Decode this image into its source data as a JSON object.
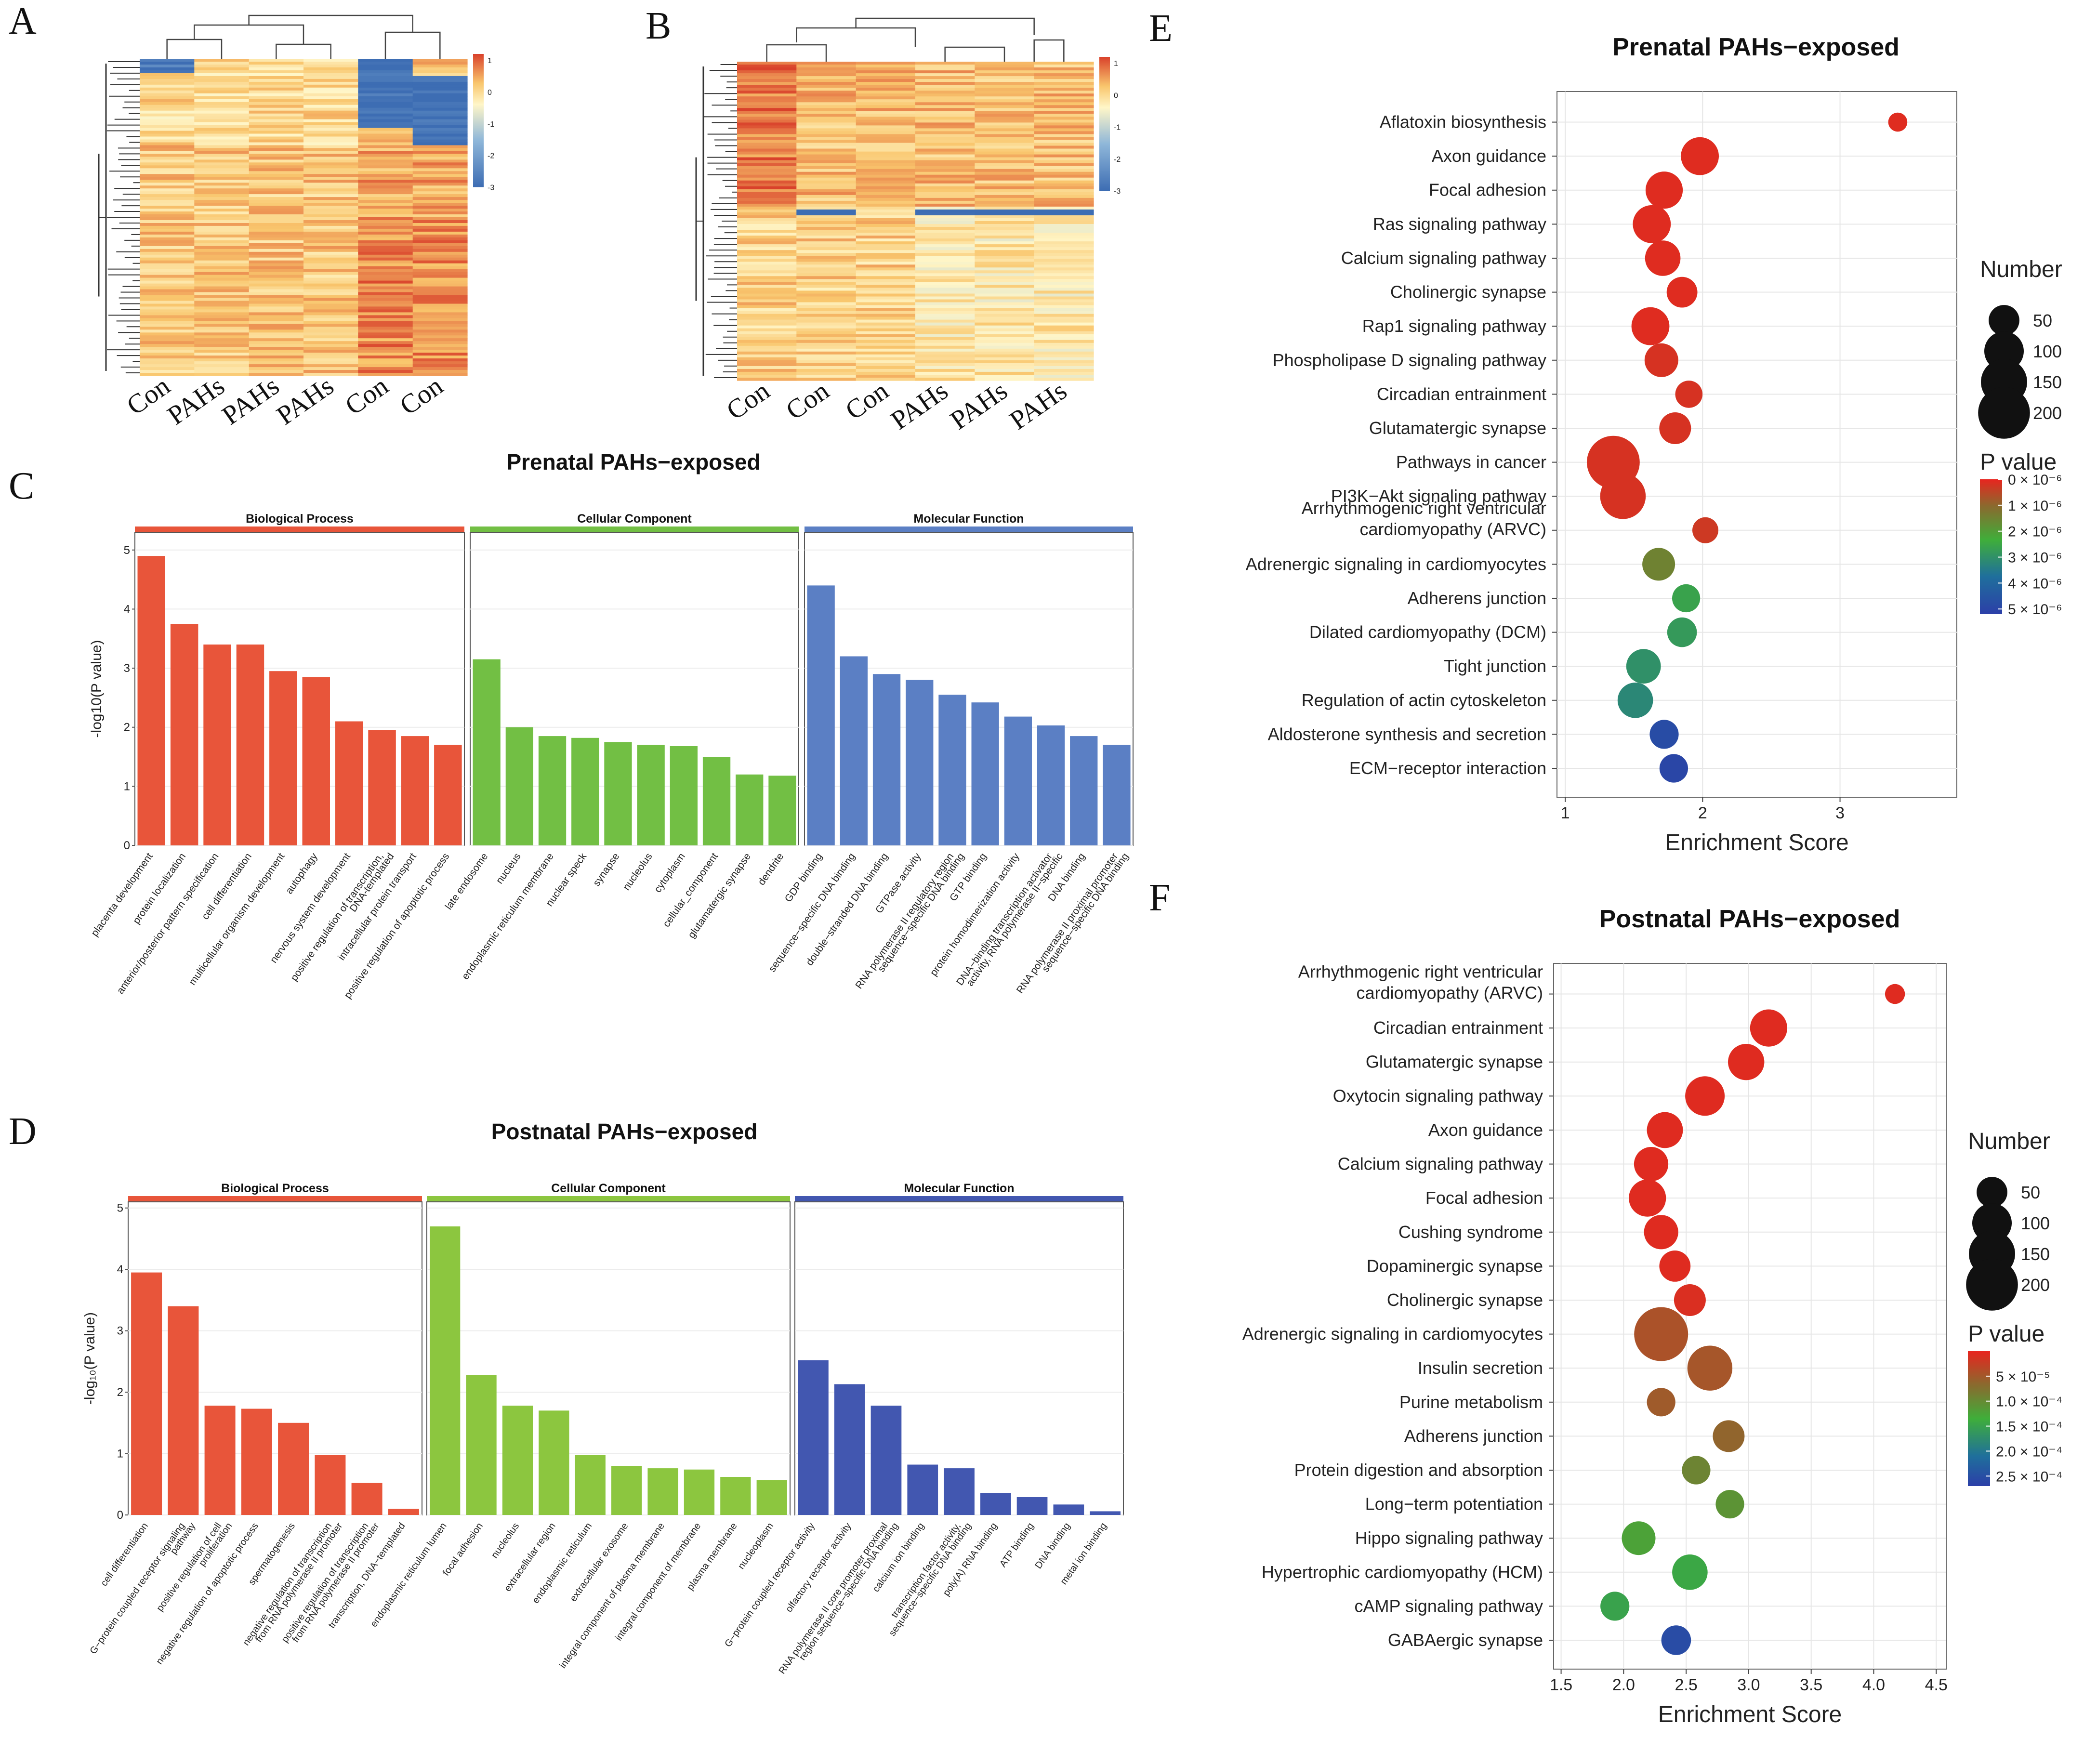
{
  "panels": {
    "a": "A",
    "b": "B",
    "c": "C",
    "d": "D",
    "e": "E",
    "f": "F"
  },
  "chart_data": [
    {
      "id": "A",
      "type": "heatmap",
      "columns": [
        "Con",
        "PAHs",
        "PAHs",
        "PAHs",
        "Con",
        "Con"
      ],
      "colorbar": {
        "ticks": [
          "1",
          "0",
          "-1",
          "-2",
          "-3"
        ],
        "range": [
          -3,
          1.2
        ]
      }
    },
    {
      "id": "B",
      "type": "heatmap",
      "columns": [
        "Con",
        "Con",
        "Con",
        "PAHs",
        "PAHs",
        "PAHs"
      ],
      "colorbar": {
        "ticks": [
          "1",
          "0",
          "-1",
          "-2",
          "-3"
        ],
        "range": [
          -3,
          1.2
        ]
      }
    },
    {
      "id": "C",
      "type": "bar",
      "title": "Prenatal PAHs−exposed",
      "ylabel": "-log10(P value)",
      "ylim": [
        0,
        5.3
      ],
      "yticks": [
        "0",
        "1",
        "2",
        "3",
        "4",
        "5"
      ],
      "facets": [
        {
          "name": "Biological Process",
          "color": "#e8553a",
          "categories": [
            "placenta development",
            "protein localization",
            "anterior/posterior pattern specification",
            "cell differentiation",
            "multicellular organism development",
            "autophagy",
            "nervous system development",
            "positive regulation of transcription, DNA-templated",
            "intracellular protein transport",
            "positive regulation of apoptotic process"
          ],
          "values": [
            4.9,
            3.75,
            3.4,
            3.4,
            2.95,
            2.85,
            2.1,
            1.95,
            1.85,
            1.7
          ]
        },
        {
          "name": "Cellular Component",
          "color": "#72bf44",
          "categories": [
            "late endosome",
            "nucleus",
            "endoplasmic reticulum membrane",
            "nuclear speck",
            "synapse",
            "nucleolus",
            "cytoplasm",
            "cellular_component",
            "glutamatergic synapse",
            "dendrite"
          ],
          "values": [
            3.15,
            2.0,
            1.85,
            1.82,
            1.75,
            1.7,
            1.68,
            1.5,
            1.2,
            1.18
          ]
        },
        {
          "name": "Molecular Function",
          "color": "#5b7fc4",
          "categories": [
            "GDP binding",
            "sequence−specific DNA binding",
            "double−stranded DNA binding",
            "GTPase activity",
            "RNA polymerase II regulatory region sequence−specific DNA binding",
            "GTP binding",
            "protein homodimerization activity",
            "DNA−binding transcription activator activity, RNA polymerase II−specific",
            "DNA binding",
            "RNA polymerase II proximal promoter sequence−specific DNA binding"
          ],
          "values": [
            4.4,
            3.2,
            2.9,
            2.8,
            2.55,
            2.42,
            2.18,
            2.03,
            1.85,
            1.7
          ]
        }
      ]
    },
    {
      "id": "D",
      "type": "bar",
      "title": "Postnatal PAHs−exposed",
      "ylabel": "-log₁₀(P value)",
      "ylim": [
        0,
        5.1
      ],
      "yticks": [
        "0",
        "1",
        "2",
        "3",
        "4",
        "5"
      ],
      "facets": [
        {
          "name": "Biological Process",
          "color": "#e8553a",
          "categories": [
            "cell differentiation",
            "G−protein coupled receptor signaling pathway",
            "positive regulation of cell proliferation",
            "negative regulation of apoptotic process",
            "spermatogenesis",
            "negative regulation of transcription from RNA polymerase II promoter",
            "positive regulation of transcription from RNA polymerase II promoter",
            "transcription, DNA−templated"
          ],
          "values": [
            3.95,
            3.4,
            1.78,
            1.73,
            1.5,
            0.98,
            0.52,
            0.1
          ]
        },
        {
          "name": "Cellular Component",
          "color": "#8cc63f",
          "categories": [
            "endoplasmic reticulum lumen",
            "focal adhesion",
            "nucleolus",
            "extracellular region",
            "endoplasmic reticulum",
            "extracellular exosome",
            "integral component of plasma membrane",
            "integral component of membrane",
            "plasma membrane",
            "nucleoplasm"
          ],
          "values": [
            4.7,
            2.28,
            1.78,
            1.7,
            0.98,
            0.8,
            0.76,
            0.74,
            0.62,
            0.57
          ]
        },
        {
          "name": "Molecular Function",
          "color": "#4257b0",
          "categories": [
            "G−protein coupled receptor activity",
            "olfactory receptor activity",
            "RNA polymerase II core promoter proximal region sequence−specific DNA binding",
            "calcium ion binding",
            "transcription factor activity, sequence−specific DNA binding",
            "poly(A) RNA binding",
            "ATP binding",
            "DNA binding",
            "metal ion binding"
          ],
          "values": [
            2.52,
            2.13,
            1.78,
            0.82,
            0.76,
            0.36,
            0.29,
            0.17,
            0.06
          ]
        }
      ]
    },
    {
      "id": "E",
      "type": "scatter",
      "title": "Prenatal PAHs−exposed",
      "xlabel": "Enrichment Score",
      "xlim": [
        0.94,
        3.85
      ],
      "xticks": [
        1,
        2,
        3
      ],
      "categories": [
        "Aflatoxin biosynthesis",
        "Axon guidance",
        "Focal adhesion",
        "Ras signaling pathway",
        "Calcium signaling pathway",
        "Cholinergic synapse",
        "Rap1 signaling pathway",
        "Phospholipase D signaling pathway",
        "Circadian entrainment",
        "Glutamatergic synapse",
        "Pathways in cancer",
        "PI3K−Akt signaling pathway",
        "Arrhythmogenic right ventricular cardiomyopathy (ARVC)",
        "Adrenergic signaling in cardiomyocytes",
        "Adherens junction",
        "Dilated cardiomyopathy (DCM)",
        "Tight junction",
        "Regulation of actin cytoskeleton",
        "Aldosterone synthesis and secretion",
        "ECM−receptor interaction"
      ],
      "x": [
        3.42,
        1.98,
        1.72,
        1.63,
        1.71,
        1.85,
        1.62,
        1.7,
        1.9,
        1.8,
        1.35,
        1.42,
        2.02,
        1.68,
        1.88,
        1.85,
        1.57,
        1.51,
        1.72,
        1.79
      ],
      "number": [
        10,
        90,
        85,
        90,
        75,
        50,
        90,
        65,
        35,
        55,
        210,
        145,
        30,
        60,
        38,
        45,
        70,
        75,
        42,
        40
      ],
      "pvalue_e6": [
        0.1,
        0.1,
        0.1,
        0.1,
        0.1,
        0.1,
        0.1,
        0.2,
        0.2,
        0.2,
        0.2,
        0.2,
        0.3,
        1.5,
        2.6,
        2.8,
        3.0,
        3.2,
        4.8,
        5.0
      ],
      "size_legend": {
        "title": "Number",
        "values": [
          50,
          100,
          150,
          200
        ]
      },
      "color_legend": {
        "title": "P value",
        "range": [
          0,
          5.2
        ],
        "labels": [
          "0 × 10⁻⁶",
          "1 × 10⁻⁶",
          "2 × 10⁻⁶",
          "3 × 10⁻⁶",
          "4 × 10⁻⁶",
          "5 × 10⁻⁶"
        ],
        "values": [
          0,
          1,
          2,
          3,
          4,
          5
        ]
      }
    },
    {
      "id": "F",
      "type": "scatter",
      "title": "Postnatal PAHs−exposed",
      "xlabel": "Enrichment Score",
      "xlim": [
        1.44,
        4.58
      ],
      "xticks": [
        1.5,
        2.0,
        2.5,
        3.0,
        3.5,
        4.0,
        4.5
      ],
      "xtick_labels": [
        "1.5",
        "2.0",
        "2.5",
        "3.0",
        "3.5",
        "4.0",
        "4.5"
      ],
      "categories": [
        "Arrhythmogenic right ventricular cardiomyopathy (ARVC)",
        "Circadian entrainment",
        "Glutamatergic synapse",
        "Oxytocin signaling pathway",
        "Axon guidance",
        "Calcium signaling pathway",
        "Focal adhesion",
        "Cushing syndrome",
        "Dopaminergic synapse",
        "Cholinergic synapse",
        "Adrenergic signaling in cardiomyocytes",
        "Insulin secretion",
        "Purine metabolism",
        "Adherens junction",
        "Protein digestion and absorption",
        "Long−term potentiation",
        "Hippo signaling pathway",
        "Hypertrophic cardiomyopathy (HCM)",
        "cAMP signaling pathway",
        "GABAergic synapse"
      ],
      "x": [
        4.17,
        3.16,
        2.98,
        2.65,
        2.33,
        2.22,
        2.19,
        2.3,
        2.41,
        2.53,
        2.3,
        2.69,
        2.3,
        2.84,
        2.58,
        2.85,
        2.12,
        2.53,
        1.93,
        2.42
      ],
      "number": [
        12,
        85,
        80,
        100,
        78,
        68,
        85,
        68,
        52,
        55,
        220,
        140,
        40,
        55,
        40,
        40,
        65,
        75,
        42,
        45
      ],
      "pvalue_e5": [
        0.5,
        0.5,
        0.5,
        0.5,
        0.5,
        0.5,
        0.5,
        0.5,
        0.5,
        0.8,
        3.5,
        3.8,
        4.2,
        5.0,
        8.0,
        9.5,
        11.0,
        13.0,
        13.5,
        25.0
      ],
      "size_legend": {
        "title": "Number",
        "values": [
          50,
          100,
          150,
          200
        ]
      },
      "color_legend": {
        "title": "P value",
        "range": [
          0,
          27
        ],
        "labels": [
          "5 × 10⁻⁵",
          "1.0 × 10⁻⁴",
          "1.5 × 10⁻⁴",
          "2.0 × 10⁻⁴",
          "2.5 × 10⁻⁴"
        ],
        "values": [
          5,
          10,
          15,
          20,
          25
        ]
      }
    }
  ]
}
